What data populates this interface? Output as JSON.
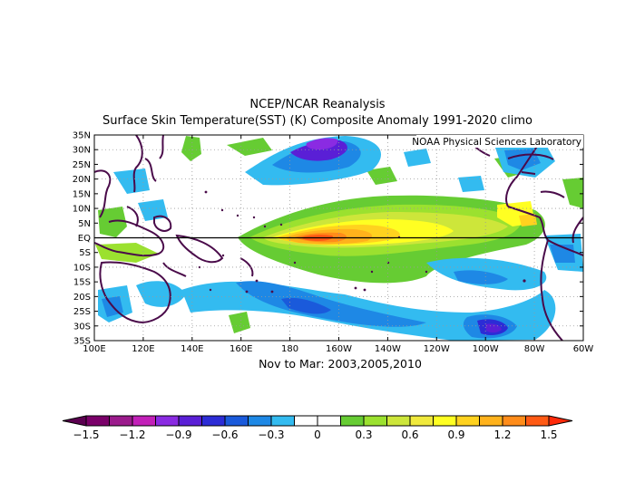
{
  "title_line1": "NCEP/NCAR Reanalysis",
  "title_line2": "Surface Skin Temperature(SST) (K) Composite Anomaly 1991-2020 climo",
  "subtitle": "Nov to Mar: 2003,2005,2010",
  "credit": "NOAA Physical Sciences Laboratory",
  "map": {
    "lon_labels": [
      "100E",
      "120E",
      "140E",
      "160E",
      "180",
      "160W",
      "140W",
      "120W",
      "100W",
      "80W",
      "60W"
    ],
    "lat_labels": [
      "35N",
      "30N",
      "25N",
      "20N",
      "15N",
      "10N",
      "5N",
      "EQ",
      "5S",
      "10S",
      "15S",
      "20S",
      "25S",
      "30S",
      "35S"
    ],
    "lon_range": [
      100,
      300
    ],
    "lat_range": [
      -35,
      35
    ]
  },
  "colorbar": {
    "labels": [
      "-1.5",
      "-1.2",
      "-0.9",
      "-0.6",
      "-0.3",
      "0",
      "0.3",
      "0.6",
      "0.9",
      "1.2",
      "1.5"
    ],
    "colors": [
      "#7a0069",
      "#9b1b8c",
      "#c220b8",
      "#8a2be2",
      "#5a1fd6",
      "#2c2cd6",
      "#1a5adb",
      "#1e88e5",
      "#33bbf0",
      "#ffffff",
      "#ffffff",
      "#66cc33",
      "#9be12f",
      "#cde63a",
      "#f0e93c",
      "#ffff22",
      "#ffd21f",
      "#ffb21c",
      "#ff8c1a",
      "#ff5a14"
    ],
    "left_arrow": "#5b0050",
    "right_arrow": "#ff2a0a"
  },
  "colors": {
    "land": "#4a0b4a",
    "equator": "#000000",
    "grid": "#9a9a9a"
  }
}
